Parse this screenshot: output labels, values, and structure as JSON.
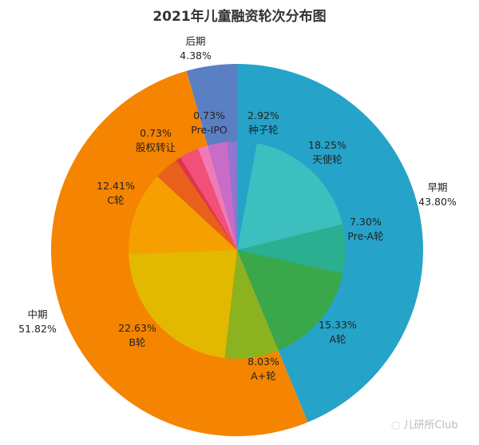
{
  "chart_data": {
    "type": "pie",
    "title": "2021年儿童融资轮次分布图",
    "outer": [
      {
        "name": "早期",
        "value": 43.8,
        "label": "43.80%",
        "color": "#25a3c9"
      },
      {
        "name": "中期",
        "value": 51.82,
        "label": "51.82%",
        "color": "#f58400"
      },
      {
        "name": "后期",
        "value": 4.38,
        "label": "4.38%",
        "color": "#5a7fc2"
      }
    ],
    "inner": [
      {
        "name": "种子轮",
        "value": 2.92,
        "label": "2.92%",
        "color": "#25a3c9"
      },
      {
        "name": "天使轮",
        "value": 18.25,
        "label": "18.25%",
        "color": "#3dbfbf"
      },
      {
        "name": "Pre-A轮",
        "value": 7.3,
        "label": "7.30%",
        "color": "#2aaf90"
      },
      {
        "name": "A轮",
        "value": 15.33,
        "label": "15.33%",
        "color": "#3aa84a"
      },
      {
        "name": "A+轮",
        "value": 8.03,
        "label": "8.03%",
        "color": "#8db21f"
      },
      {
        "name": "B轮",
        "value": 22.63,
        "label": "22.63%",
        "color": "#e2b800"
      },
      {
        "name": "C轮",
        "value": 12.41,
        "label": "12.41%",
        "color": "#f5a000"
      },
      {
        "name": "",
        "value": 3.65,
        "label": "",
        "color": "#e8601c"
      },
      {
        "name": "股权转让",
        "value": 0.73,
        "label": "0.73%",
        "color": "#e0334a"
      },
      {
        "name": "",
        "value": 2.92,
        "label": "",
        "color": "#f0507a"
      },
      {
        "name": "",
        "value": 1.46,
        "label": "",
        "color": "#f07ab8"
      },
      {
        "name": "",
        "value": 2.92,
        "label": "",
        "color": "#c86cc8"
      },
      {
        "name": "Pre-IPO",
        "value": 0.73,
        "label": "0.73%",
        "color": "#9a72d0"
      },
      {
        "name": "",
        "value": 0.73,
        "label": "",
        "color": "#8a78d0"
      }
    ]
  },
  "watermark": "儿研所Club"
}
